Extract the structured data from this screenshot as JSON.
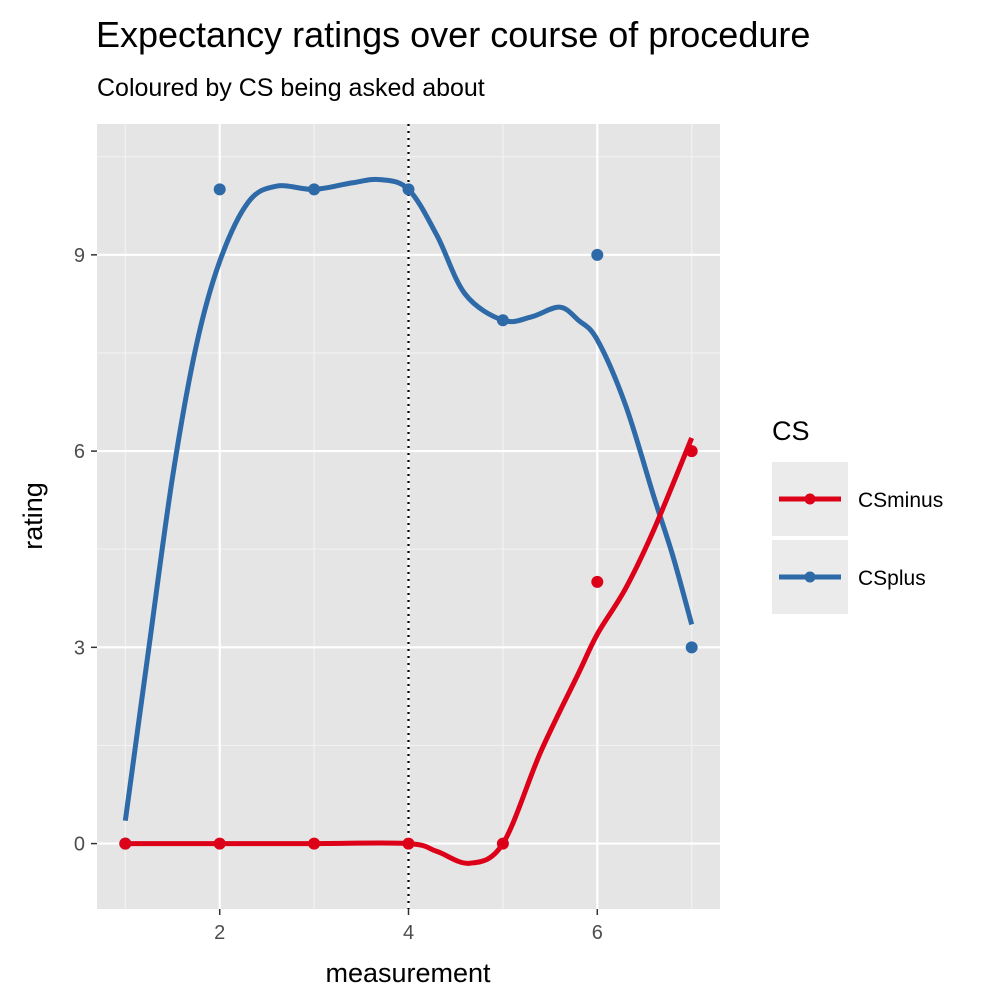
{
  "chart_data": {
    "type": "line",
    "title": "Expectancy ratings over course of procedure",
    "subtitle": "Coloured by CS being asked about",
    "xlabel": "measurement",
    "ylabel": "rating",
    "xlim": [
      0.7,
      7.3
    ],
    "ylim": [
      -1,
      11
    ],
    "x_ticks": [
      2,
      4,
      6
    ],
    "y_ticks": [
      0,
      3,
      6,
      9
    ],
    "grid": true,
    "vline": {
      "x": 4,
      "style": "dotted"
    },
    "legend": {
      "title": "CS",
      "position": "right"
    },
    "series": [
      {
        "name": "CSminus",
        "color": "#dc0019",
        "points": [
          [
            1,
            0
          ],
          [
            2,
            0
          ],
          [
            3,
            0
          ],
          [
            4,
            0
          ],
          [
            5,
            0
          ],
          [
            6,
            4
          ],
          [
            7,
            6
          ]
        ],
        "smooth": [
          [
            1,
            0
          ],
          [
            2,
            0
          ],
          [
            3,
            0
          ],
          [
            4,
            0
          ],
          [
            4.3,
            -0.12
          ],
          [
            4.65,
            -0.3
          ],
          [
            5,
            0
          ],
          [
            5.4,
            1.4
          ],
          [
            5.8,
            2.6
          ],
          [
            6,
            3.2
          ],
          [
            6.3,
            3.9
          ],
          [
            6.6,
            4.8
          ],
          [
            7,
            6.2
          ]
        ]
      },
      {
        "name": "CSplus",
        "color": "#2e6aa8",
        "points": [
          [
            1,
            0
          ],
          [
            2,
            10
          ],
          [
            3,
            10
          ],
          [
            4,
            10
          ],
          [
            5,
            8
          ],
          [
            6,
            9
          ],
          [
            7,
            3
          ]
        ],
        "smooth": [
          [
            1,
            0.35
          ],
          [
            1.25,
            3.0
          ],
          [
            1.5,
            5.6
          ],
          [
            1.75,
            7.6
          ],
          [
            2,
            8.9
          ],
          [
            2.3,
            9.8
          ],
          [
            2.6,
            10.05
          ],
          [
            3,
            10.0
          ],
          [
            3.4,
            10.1
          ],
          [
            3.7,
            10.15
          ],
          [
            4,
            10.0
          ],
          [
            4.3,
            9.3
          ],
          [
            4.6,
            8.4
          ],
          [
            5,
            8.0
          ],
          [
            5.3,
            8.05
          ],
          [
            5.6,
            8.2
          ],
          [
            5.8,
            8.0
          ],
          [
            6,
            7.7
          ],
          [
            6.3,
            6.7
          ],
          [
            6.6,
            5.3
          ],
          [
            6.8,
            4.4
          ],
          [
            7,
            3.35
          ]
        ]
      }
    ]
  }
}
